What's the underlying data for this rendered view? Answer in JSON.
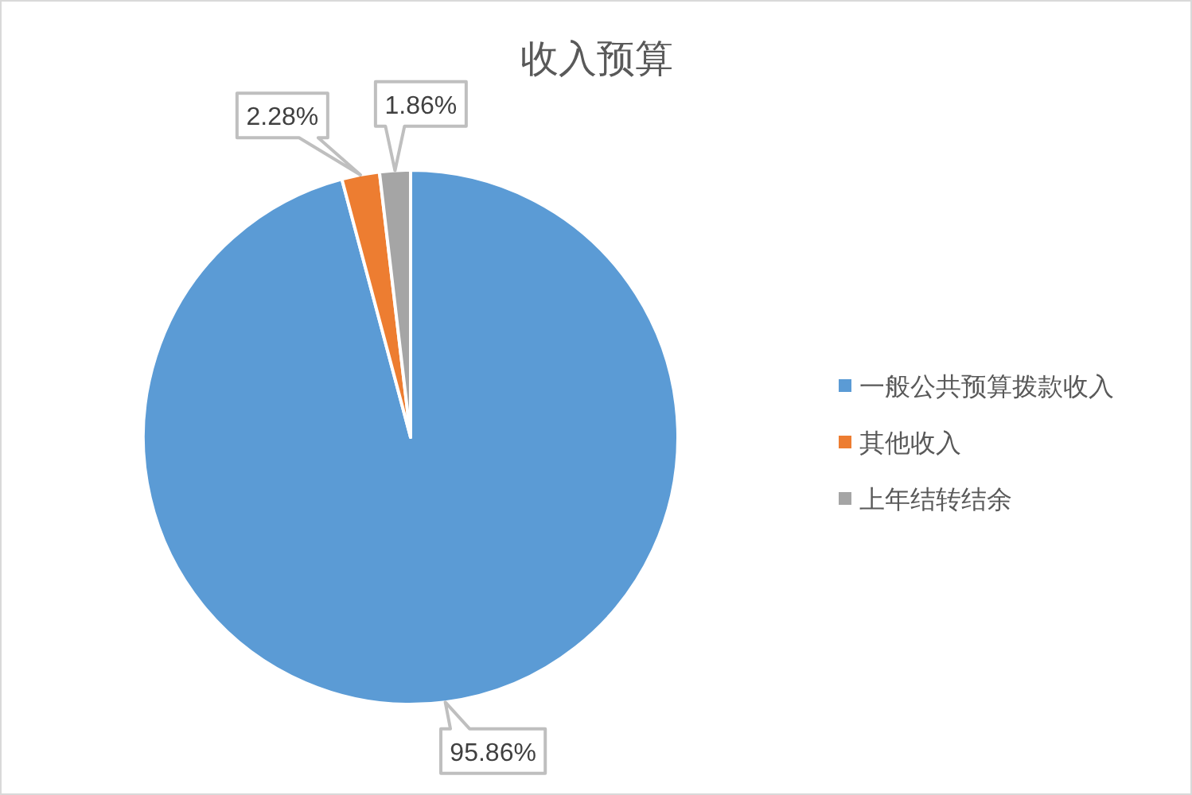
{
  "chart_data": {
    "type": "pie",
    "title": "收入预算",
    "categories": [
      "一般公共预算拨款收入",
      "其他收入",
      "上年结转结余"
    ],
    "values": [
      95.86,
      2.28,
      1.86
    ],
    "colors": [
      "#5b9bd5",
      "#ed7d31",
      "#a5a5a5"
    ],
    "value_labels": [
      "95.86%",
      "2.28%",
      "1.86%"
    ],
    "legend": "right"
  }
}
